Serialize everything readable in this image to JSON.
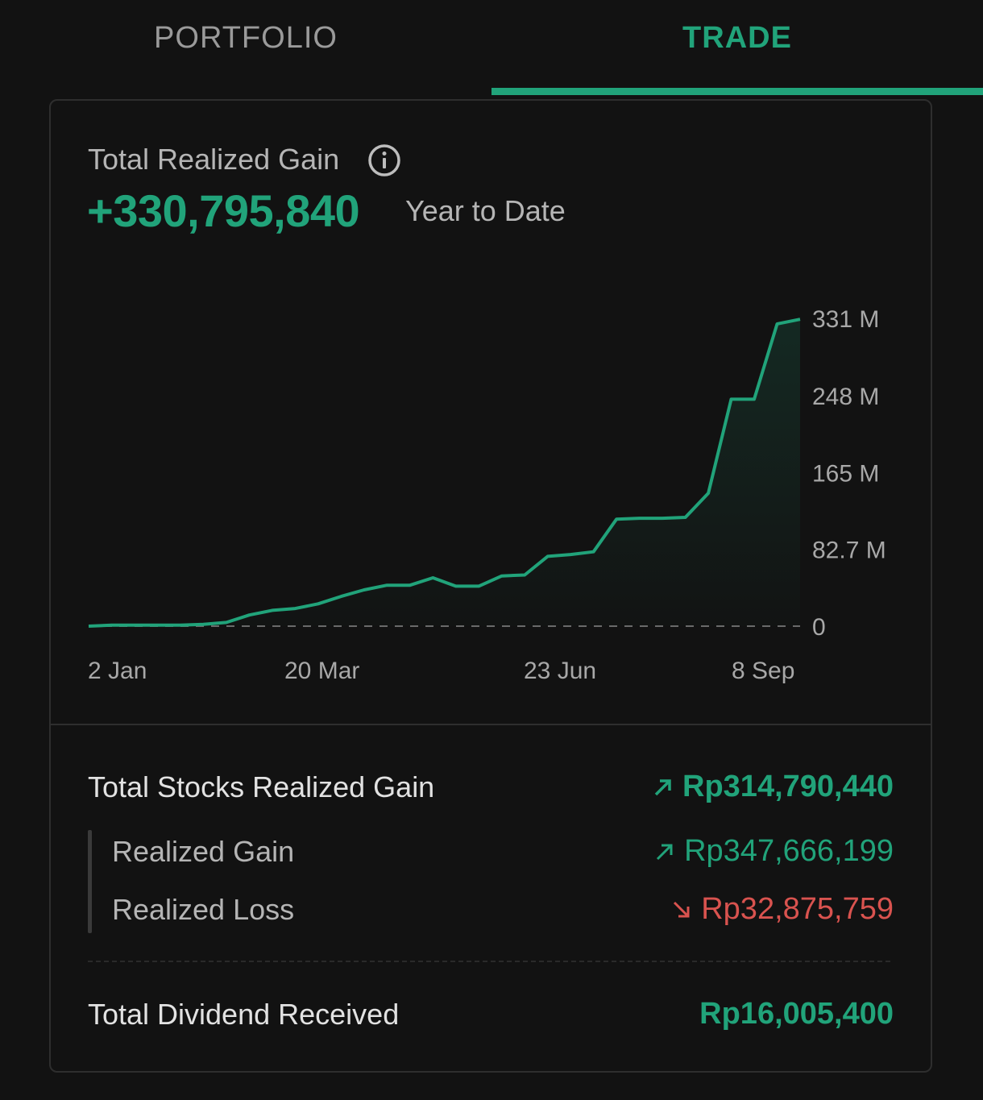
{
  "tabs": [
    {
      "label": "PORTFOLIO",
      "active": false
    },
    {
      "label": "TRADE",
      "active": true
    }
  ],
  "colors": {
    "accent": "#21a37a",
    "loss": "#d9534f",
    "background": "#121212",
    "border": "#2e2e2e"
  },
  "summary": {
    "label": "Total Realized Gain",
    "value": "+330,795,840",
    "period": "Year to Date",
    "info_icon": "info-circle-icon"
  },
  "chart_data": {
    "type": "area",
    "y_ticks": [
      "331 M",
      "248 M",
      "165 M",
      "82.7 M",
      "0"
    ],
    "x_ticks": [
      "2 Jan",
      "20 Mar",
      "23 Jun",
      "8 Sep"
    ],
    "ylim": [
      0,
      331
    ],
    "y_unit": "M",
    "baseline_dashed": true,
    "x": [
      "2 Jan",
      "15 Jan",
      "1 Feb",
      "15 Feb",
      "1 Mar",
      "20 Mar",
      "25 Mar",
      "1 Apr",
      "10 Apr",
      "20 Apr",
      "1 May",
      "10 May",
      "15 May",
      "25 May",
      "5 Jun",
      "10 Jun",
      "13 Jun",
      "23 Jun",
      "1 Jul",
      "10 Jul",
      "15 Jul",
      "25 Jul",
      "1 Aug",
      "5 Aug",
      "10 Aug",
      "20 Aug",
      "25 Aug",
      "28 Aug",
      "1 Sep",
      "8 Sep",
      "12 Sep",
      "14 Sep"
    ],
    "values": [
      0,
      1,
      1,
      1,
      1,
      2,
      4,
      12,
      17,
      19,
      24,
      32,
      39,
      44,
      44,
      52,
      43,
      43,
      54,
      55,
      75,
      77,
      80,
      115,
      116,
      116,
      117,
      143,
      244,
      244,
      325,
      330
    ]
  },
  "stats": {
    "total_stocks": {
      "label": "Total Stocks Realized Gain",
      "value": "Rp314,790,440",
      "direction": "up"
    },
    "realized_gain": {
      "label": "Realized Gain",
      "value": "Rp347,666,199",
      "direction": "up"
    },
    "realized_loss": {
      "label": "Realized Loss",
      "value": "Rp32,875,759",
      "direction": "down"
    },
    "dividend": {
      "label": "Total Dividend Received",
      "value": "Rp16,005,400"
    }
  }
}
